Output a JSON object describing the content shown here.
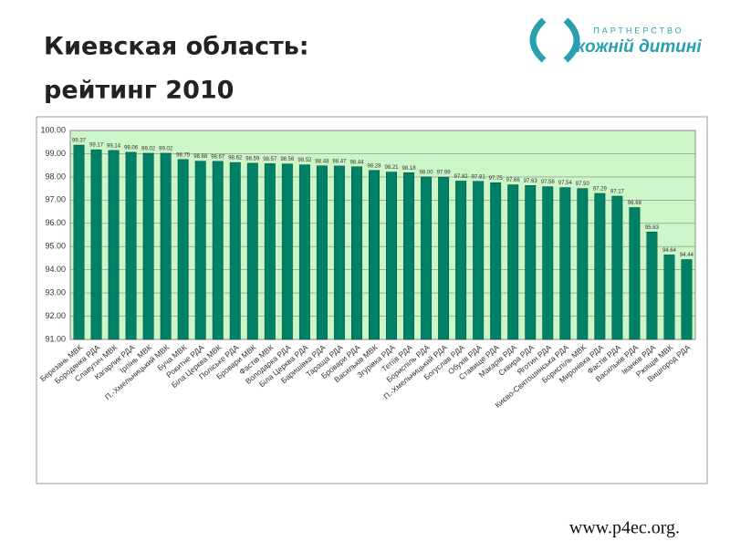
{
  "header": {
    "title_lines": [
      "Киевская область:",
      "рейтинг 2010"
    ]
  },
  "logo": {
    "top": "ПАРТНЕРСТВО",
    "bottom": "кожній дитині"
  },
  "footer": "www.p4ec.org.",
  "chart_data": {
    "type": "bar",
    "categories": [
      "Березань МВК",
      "Бородянка РДА",
      "Славутич МВК",
      "Кагарлик РДА",
      "Ірпінь МВК",
      "П.-Хмельницький МВК",
      "Буча МВК",
      "Рокитне РДА",
      "Біла Церква МВК",
      "Поліське РДА",
      "Бровари МВК",
      "Фастів МВК",
      "Володарка РДА",
      "Біла Церква РДА",
      "Баришівка РДА",
      "Тараща РДА",
      "Бровари РДА",
      "Васильків МВК",
      "Згурівка РДА",
      "Тетіїв РДА",
      "Бориспіль РДА",
      "П.-Хмельницький РДА",
      "Богуслав РДА",
      "Обухів РДА",
      "Ставище РДА",
      "Макарів РДА",
      "Сквира РДА",
      "Яготин РДА",
      "Києво-Святошинська РДА",
      "Бориспіль МВК",
      "Миронівка РДА",
      "Фастів РДА",
      "Васильків РДА",
      "Іванків РДА",
      "Ржищів МВК",
      "Вишгород РДА"
    ],
    "values": [
      99.37,
      99.17,
      99.14,
      99.06,
      99.02,
      99.02,
      98.75,
      98.68,
      98.67,
      98.62,
      98.59,
      98.57,
      98.56,
      98.52,
      98.48,
      98.47,
      98.44,
      98.28,
      98.21,
      98.18,
      98.0,
      97.99,
      97.82,
      97.81,
      97.75,
      97.66,
      97.63,
      97.58,
      97.54,
      97.5,
      97.29,
      97.17,
      96.68,
      95.63,
      94.64,
      94.44
    ],
    "value_labels": [
      "99.37",
      "99.17",
      "99.14",
      "99.06",
      "99.02",
      "99.02",
      "98.75",
      "98.68",
      "98.67",
      "98.62",
      "98.59",
      "98.57",
      "98.56",
      "98.52",
      "98.48",
      "98.47",
      "98.44",
      "98.28",
      "98.21",
      "98.18",
      "98.00",
      "97.99",
      "97.82",
      "97.81",
      "97.75",
      "97.66",
      "97.63",
      "97.58",
      "97.54",
      "97.50",
      "97.29",
      "97.17",
      "96.68",
      "95.63",
      "94.64",
      "94.44"
    ],
    "color": "#008066",
    "ylim": [
      91,
      100
    ],
    "yticks": [
      {
        "value": 91,
        "label": "91.00"
      },
      {
        "value": 92,
        "label": "92.00"
      },
      {
        "value": 93,
        "label": "93.00"
      },
      {
        "value": 94,
        "label": "94.00"
      },
      {
        "value": 95,
        "label": "95.00"
      },
      {
        "value": 96,
        "label": "96.00"
      },
      {
        "value": 97,
        "label": "97.00"
      },
      {
        "value": 98,
        "label": "98.00"
      },
      {
        "value": 99,
        "label": "99.00"
      },
      {
        "value": 100,
        "label": "100.00"
      }
    ],
    "grid": true
  }
}
